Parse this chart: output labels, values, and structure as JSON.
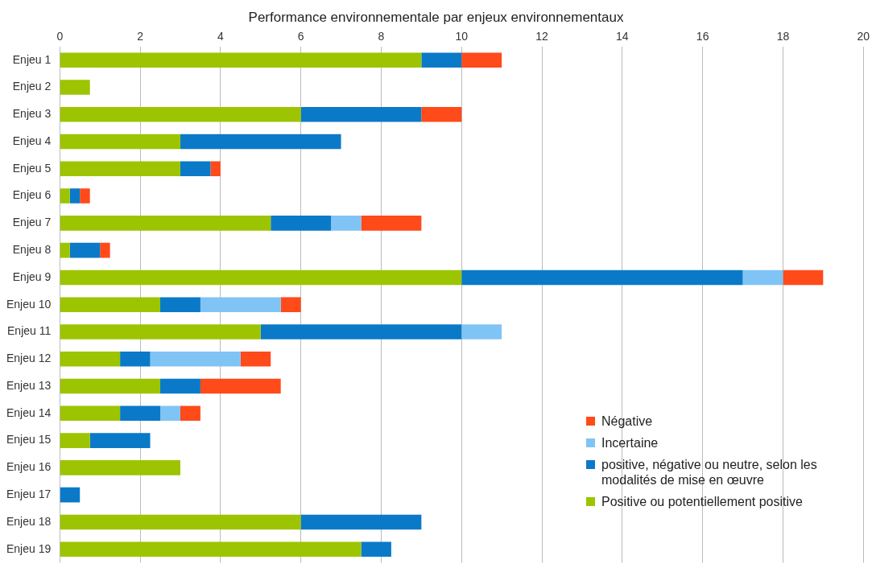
{
  "chart_data": {
    "type": "bar",
    "orientation": "horizontal",
    "stacked": true,
    "title": "Performance environnementale par enjeux environnementaux",
    "categories": [
      "Enjeu 1",
      "Enjeu 2",
      "Enjeu 3",
      "Enjeu 4",
      "Enjeu 5",
      "Enjeu 6",
      "Enjeu 7",
      "Enjeu 8",
      "Enjeu 9",
      "Enjeu 10",
      "Enjeu 11",
      "Enjeu 12",
      "Enjeu 13",
      "Enjeu 14",
      "Enjeu 15",
      "Enjeu 16",
      "Enjeu 17",
      "Enjeu 18",
      "Enjeu 19"
    ],
    "series": [
      {
        "name": "Positive ou potentiellement positive",
        "color": "#9cc400",
        "values": [
          9,
          0.75,
          6,
          3,
          3,
          0.25,
          5.25,
          0.25,
          10,
          2.5,
          5,
          1.5,
          2.5,
          1.5,
          0.75,
          3,
          null,
          6,
          7.5
        ]
      },
      {
        "name": "positive, négative ou neutre, selon les modalités de mise en œuvre",
        "color": "#0a7ac8",
        "values": [
          1,
          null,
          3,
          4,
          0.75,
          0.25,
          1.5,
          0.75,
          7,
          1,
          5,
          0.75,
          1,
          1,
          1.5,
          null,
          0.5,
          3,
          0.75
        ]
      },
      {
        "name": "Incertaine",
        "color": "#80c4f5",
        "values": [
          null,
          null,
          null,
          null,
          null,
          null,
          0.75,
          null,
          1,
          2,
          1,
          2.25,
          null,
          0.5,
          null,
          null,
          null,
          null,
          null
        ]
      },
      {
        "name": "Négative",
        "color": "#ff4a1a",
        "values": [
          1,
          null,
          1,
          null,
          0.25,
          0.25,
          1.5,
          0.25,
          1,
          0.5,
          null,
          0.75,
          2,
          0.5,
          null,
          null,
          null,
          null,
          null
        ]
      }
    ],
    "xlim": [
      0,
      20
    ],
    "xticks": [
      0,
      2,
      4,
      6,
      8,
      10,
      12,
      14,
      16,
      18,
      20
    ],
    "grid": "x",
    "legend": "bottom right"
  }
}
